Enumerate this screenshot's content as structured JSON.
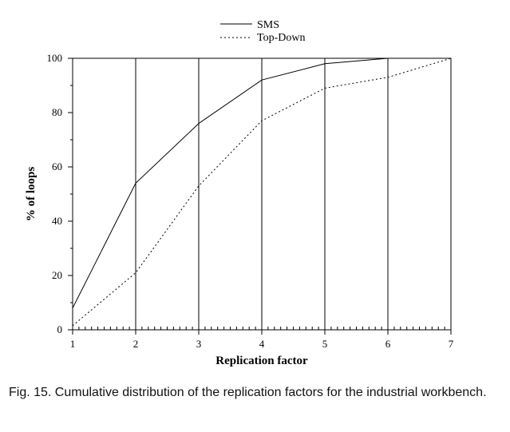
{
  "chart_data": {
    "type": "line",
    "xlabel": "Replication factor",
    "ylabel": "% of loops",
    "xlim": [
      1,
      7
    ],
    "ylim": [
      0,
      100
    ],
    "x_ticks": [
      1,
      2,
      3,
      4,
      5,
      6,
      7
    ],
    "y_ticks": [
      0,
      20,
      40,
      60,
      80,
      100
    ],
    "legend_position": "top-center",
    "vertical_gridlines": "at major x ticks",
    "series": [
      {
        "name": "SMS",
        "style": "solid",
        "x": [
          1,
          2,
          3,
          4,
          5,
          6,
          7
        ],
        "y": [
          8,
          54,
          76,
          92,
          98,
          100,
          100
        ]
      },
      {
        "name": "Top-Down",
        "style": "dotted",
        "x": [
          1,
          2,
          3,
          4,
          5,
          6,
          7
        ],
        "y": [
          1.5,
          21,
          53,
          77,
          89,
          93,
          100
        ]
      }
    ]
  },
  "caption": "Fig. 15. Cumulative distribution of the replication factors for the industrial workbench."
}
